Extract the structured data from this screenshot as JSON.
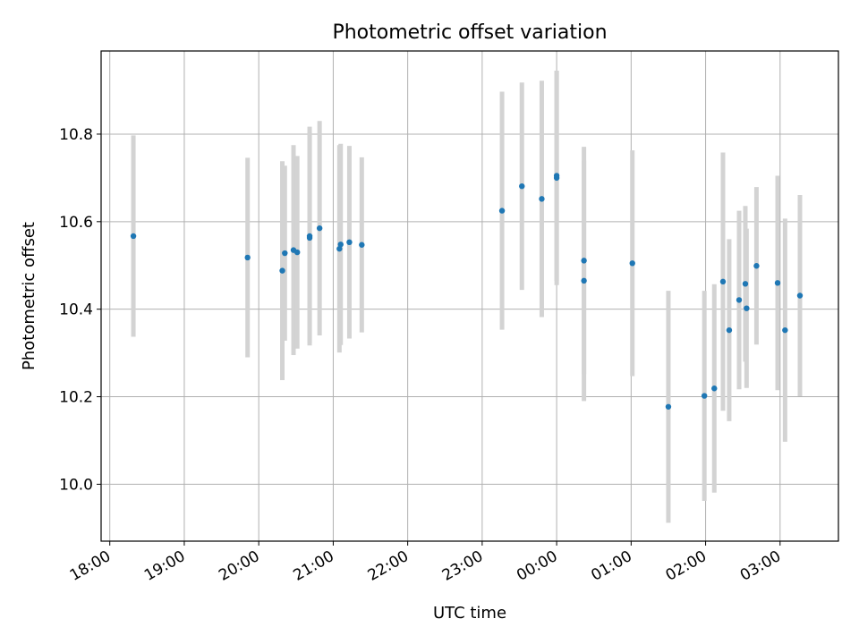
{
  "chart_data": {
    "type": "scatter",
    "title": "Photometric offset variation",
    "xlabel": "UTC time",
    "ylabel": "Photometric offset",
    "x_ticks": [
      "18:00",
      "19:00",
      "20:00",
      "21:00",
      "22:00",
      "23:00",
      "00:00",
      "01:00",
      "02:00",
      "03:00"
    ],
    "y_ticks": [
      "10.0",
      "10.2",
      "10.4",
      "10.6",
      "10.8"
    ],
    "x_axis_start": "18:00",
    "xlim": [
      "17:53",
      "03:47"
    ],
    "ylim": [
      9.87,
      10.99
    ],
    "grid": true,
    "colors": {
      "points": "#1f77b4",
      "errorbars": "#d3d3d3",
      "grid": "#b0b0b0"
    },
    "points": [
      {
        "time": "18:19",
        "y": 10.567,
        "err": 0.23
      },
      {
        "time": "19:51",
        "y": 10.518,
        "err": 0.228
      },
      {
        "time": "20:19",
        "y": 10.488,
        "err": 0.25
      },
      {
        "time": "20:21",
        "y": 10.528,
        "err": 0.2
      },
      {
        "time": "20:28",
        "y": 10.535,
        "err": 0.24
      },
      {
        "time": "20:31",
        "y": 10.53,
        "err": 0.22
      },
      {
        "time": "20:41",
        "y": 10.567,
        "err": 0.25
      },
      {
        "time": "20:41",
        "y": 10.563,
        "err": 0.24
      },
      {
        "time": "20:49",
        "y": 10.585,
        "err": 0.245
      },
      {
        "time": "21:05",
        "y": 10.538,
        "err": 0.237
      },
      {
        "time": "21:06",
        "y": 10.548,
        "err": 0.23
      },
      {
        "time": "21:13",
        "y": 10.553,
        "err": 0.22
      },
      {
        "time": "21:23",
        "y": 10.547,
        "err": 0.2
      },
      {
        "time": "23:16",
        "y": 10.625,
        "err": 0.272
      },
      {
        "time": "23:32",
        "y": 10.681,
        "err": 0.237
      },
      {
        "time": "23:48",
        "y": 10.652,
        "err": 0.27
      },
      {
        "time": "00:00",
        "y": 10.7,
        "err": 0.245
      },
      {
        "time": "00:00",
        "y": 10.705,
        "err": 0.24
      },
      {
        "time": "00:22",
        "y": 10.511,
        "err": 0.26
      },
      {
        "time": "00:22",
        "y": 10.465,
        "err": 0.275
      },
      {
        "time": "01:01",
        "y": 10.505,
        "err": 0.258
      },
      {
        "time": "01:30",
        "y": 10.177,
        "err": 0.265
      },
      {
        "time": "01:59",
        "y": 10.202,
        "err": 0.24
      },
      {
        "time": "02:07",
        "y": 10.219,
        "err": 0.238
      },
      {
        "time": "02:14",
        "y": 10.463,
        "err": 0.295
      },
      {
        "time": "02:19",
        "y": 10.352,
        "err": 0.208
      },
      {
        "time": "02:27",
        "y": 10.421,
        "err": 0.204
      },
      {
        "time": "02:32",
        "y": 10.458,
        "err": 0.178
      },
      {
        "time": "02:33",
        "y": 10.402,
        "err": 0.182
      },
      {
        "time": "02:41",
        "y": 10.499,
        "err": 0.18
      },
      {
        "time": "02:58",
        "y": 10.46,
        "err": 0.245
      },
      {
        "time": "03:04",
        "y": 10.352,
        "err": 0.255
      },
      {
        "time": "03:16",
        "y": 10.431,
        "err": 0.23
      }
    ]
  }
}
